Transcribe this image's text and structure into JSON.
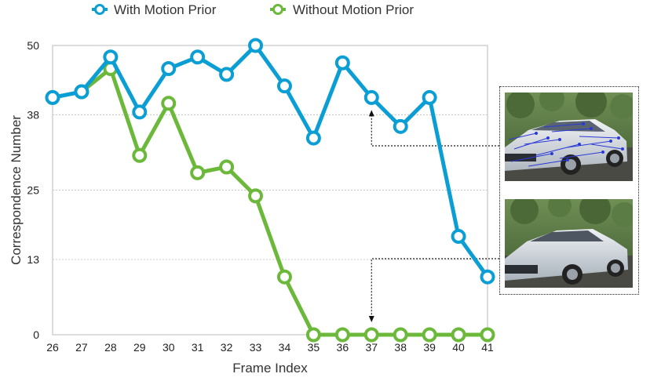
{
  "chart_data": {
    "type": "line",
    "xlabel": "Frame Index",
    "ylabel": "Correspondence Number",
    "x": [
      26,
      27,
      28,
      29,
      30,
      31,
      32,
      33,
      34,
      35,
      36,
      37,
      38,
      39,
      40,
      41
    ],
    "ylim": [
      0,
      50
    ],
    "yticks": [
      0,
      13,
      25,
      38,
      50
    ],
    "ytick_labels": [
      "0",
      "13",
      "25",
      "38",
      "50"
    ],
    "grid": "horizontal dotted",
    "legend_position": "top",
    "series": [
      {
        "name": "With Motion Prior",
        "color": "#0a9ed5",
        "values": [
          41,
          42,
          48,
          38.5,
          46,
          48,
          45,
          50,
          43,
          34,
          47,
          41,
          36,
          41,
          17,
          10
        ]
      },
      {
        "name": "Without Motion Prior",
        "color": "#6bb83a",
        "values": [
          41,
          42,
          46,
          31,
          40,
          28,
          29,
          24,
          10,
          0,
          0,
          0,
          0,
          0,
          0,
          0
        ]
      }
    ],
    "annotations": [
      {
        "target_frame": 37,
        "series": "With Motion Prior",
        "image": "car-with-correspondence-lines"
      },
      {
        "target_frame": 37,
        "series": "Without Motion Prior",
        "image": "car-plain"
      }
    ]
  }
}
